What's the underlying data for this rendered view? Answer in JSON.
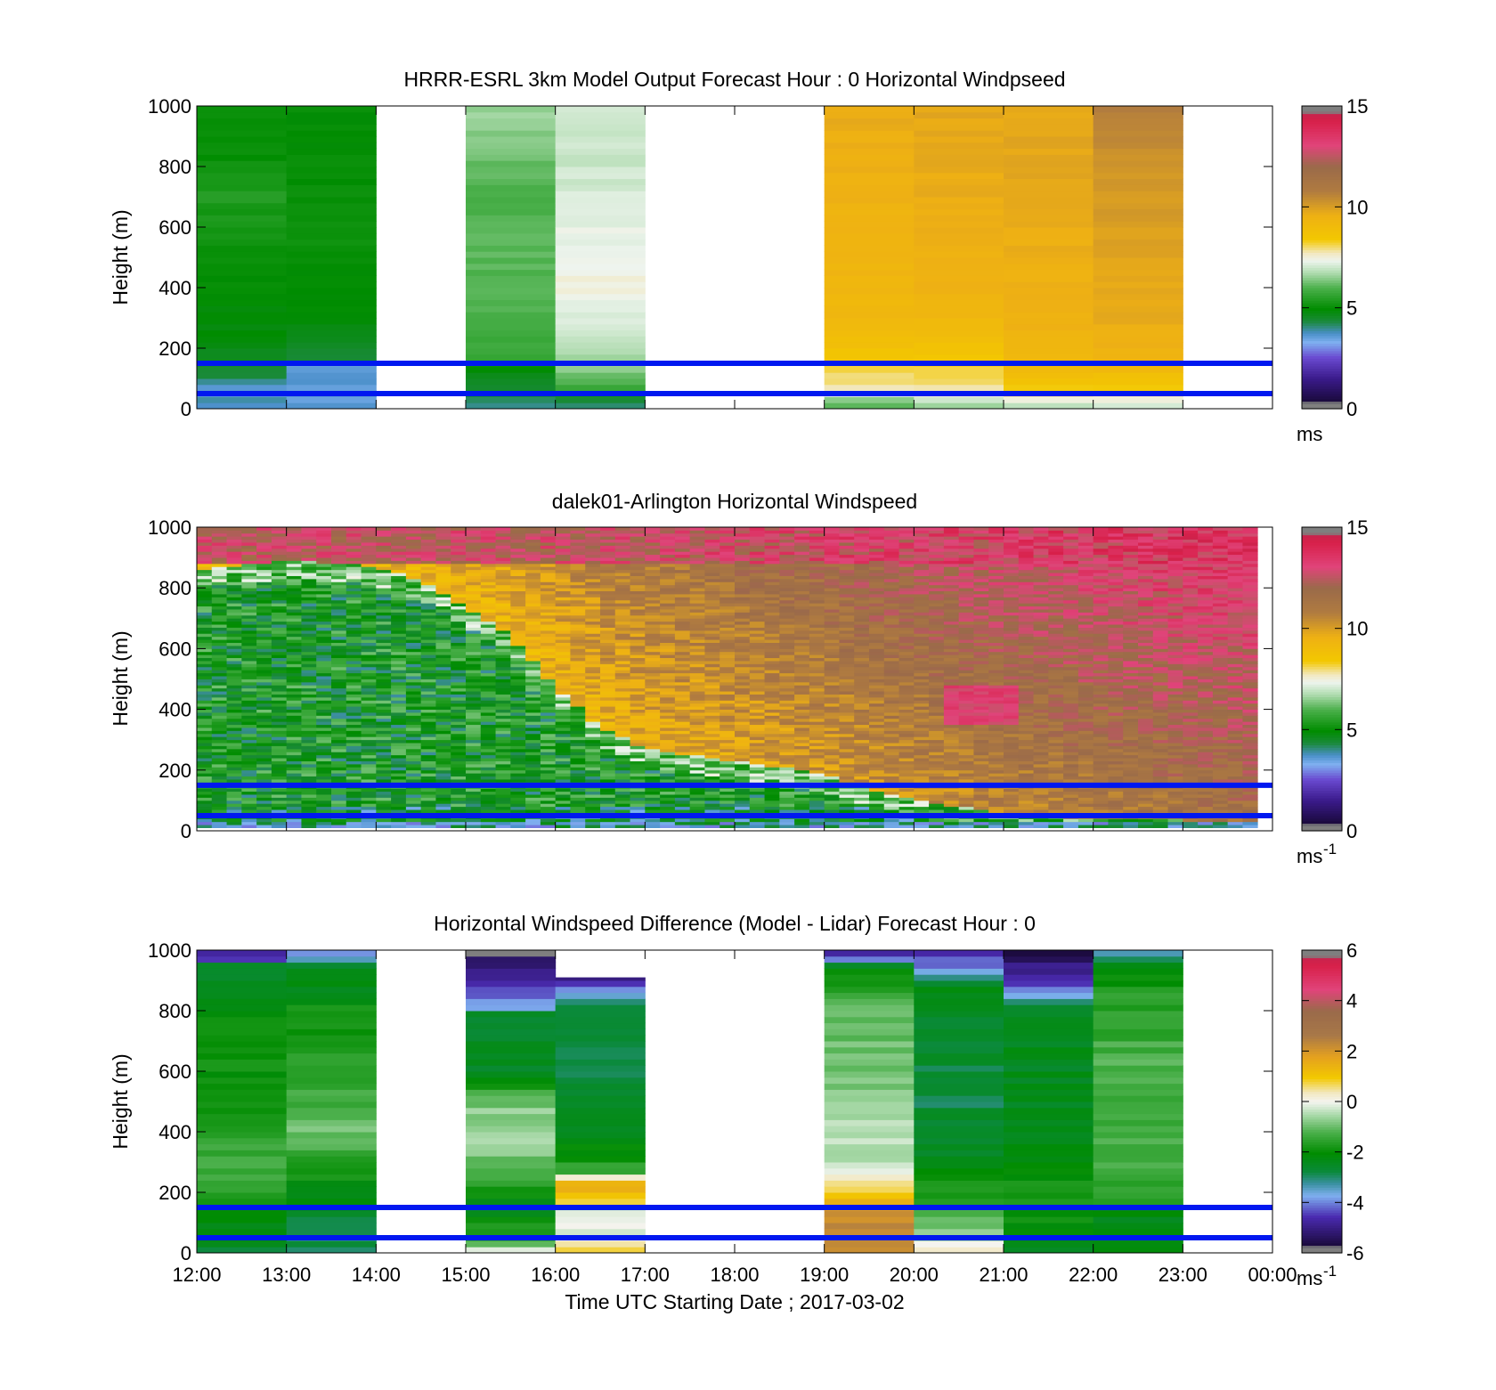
{
  "figure": {
    "xlabel": "Time UTC  Starting Date ; 2017-03-02",
    "time_ticks": [
      "12:00",
      "13:00",
      "14:00",
      "15:00",
      "16:00",
      "17:00",
      "18:00",
      "19:00",
      "20:00",
      "21:00",
      "22:00",
      "23:00",
      "00:00"
    ],
    "overlay_lines": {
      "color": "#0018f0",
      "heights_m": [
        150,
        50
      ]
    }
  },
  "chart_data": [
    {
      "type": "heatmap",
      "title": "HRRR-ESRL 3km Model Output   Forecast Hour : 0 Horizontal Windpseed",
      "ylabel": "Height (m)",
      "ylim": [
        0,
        1000
      ],
      "yticks": [
        0,
        200,
        400,
        600,
        800,
        1000
      ],
      "colorbar": {
        "min": 0,
        "max": 15,
        "ticks": [
          0,
          5,
          10,
          15
        ],
        "unit": "ms",
        "unit_sup": ""
      },
      "columns": [
        {
          "start": "12:00",
          "end": "13:00",
          "profile": [
            [
              0,
              3.8
            ],
            [
              30,
              3.8
            ],
            [
              60,
              3.4
            ],
            [
              100,
              4.3
            ],
            [
              160,
              4.6
            ],
            [
              220,
              4.8
            ],
            [
              400,
              5.0
            ],
            [
              600,
              5.2
            ],
            [
              700,
              5.4
            ],
            [
              800,
              5.1
            ],
            [
              1000,
              5.0
            ]
          ]
        },
        {
          "start": "13:00",
          "end": "14:00",
          "profile": [
            [
              0,
              3.6
            ],
            [
              40,
              3.6
            ],
            [
              150,
              3.6
            ],
            [
              160,
              4.4
            ],
            [
              250,
              4.8
            ],
            [
              400,
              5.0
            ],
            [
              600,
              5.1
            ],
            [
              800,
              5.0
            ],
            [
              1000,
              5.0
            ]
          ]
        },
        {
          "start": "15:00",
          "end": "16:00",
          "profile": [
            [
              0,
              3.8
            ],
            [
              40,
              4.3
            ],
            [
              150,
              5.0
            ],
            [
              170,
              5.6
            ],
            [
              300,
              6.0
            ],
            [
              500,
              6.1
            ],
            [
              700,
              6.0
            ],
            [
              900,
              6.4
            ],
            [
              1000,
              6.6
            ]
          ]
        },
        {
          "start": "16:00",
          "end": "17:00",
          "profile": [
            [
              0,
              3.8
            ],
            [
              30,
              4.5
            ],
            [
              60,
              5.5
            ],
            [
              100,
              6.2
            ],
            [
              150,
              6.6
            ],
            [
              250,
              7.0
            ],
            [
              400,
              7.5
            ],
            [
              600,
              7.3
            ],
            [
              800,
              7.0
            ],
            [
              1000,
              7.0
            ]
          ]
        },
        {
          "start": "19:00",
          "end": "20:00",
          "profile": [
            [
              0,
              6.0
            ],
            [
              30,
              6.5
            ],
            [
              60,
              7.5
            ],
            [
              80,
              7.8
            ],
            [
              100,
              8.0
            ],
            [
              150,
              8.3
            ],
            [
              200,
              8.8
            ],
            [
              300,
              9.2
            ],
            [
              500,
              9.4
            ],
            [
              700,
              9.5
            ],
            [
              1000,
              9.7
            ]
          ]
        },
        {
          "start": "20:00",
          "end": "21:00",
          "profile": [
            [
              0,
              6.2
            ],
            [
              40,
              7.4
            ],
            [
              80,
              7.9
            ],
            [
              150,
              8.4
            ],
            [
              200,
              8.7
            ],
            [
              250,
              9.1
            ],
            [
              400,
              9.5
            ],
            [
              600,
              9.6
            ],
            [
              800,
              9.7
            ],
            [
              1000,
              9.8
            ]
          ]
        },
        {
          "start": "21:00",
          "end": "22:00",
          "profile": [
            [
              0,
              6.8
            ],
            [
              40,
              7.6
            ],
            [
              80,
              8.6
            ],
            [
              150,
              9.3
            ],
            [
              300,
              9.5
            ],
            [
              500,
              9.6
            ],
            [
              800,
              9.8
            ],
            [
              1000,
              9.8
            ]
          ]
        },
        {
          "start": "22:00",
          "end": "23:00",
          "profile": [
            [
              0,
              6.9
            ],
            [
              40,
              7.6
            ],
            [
              80,
              8.6
            ],
            [
              150,
              9.4
            ],
            [
              300,
              9.7
            ],
            [
              600,
              10.0
            ],
            [
              850,
              10.3
            ],
            [
              1000,
              10.8
            ]
          ]
        }
      ]
    },
    {
      "type": "heatmap",
      "title": "dalek01-Arlington  Horizontal Windspeed",
      "ylabel": "Height (m)",
      "ylim": [
        0,
        1000
      ],
      "yticks": [
        0,
        200,
        400,
        600,
        800,
        1000
      ],
      "colorbar": {
        "min": 0,
        "max": 15,
        "ticks": [
          0,
          5,
          10,
          15
        ],
        "unit": "ms",
        "unit_sup": "-1"
      },
      "x_end": "23:50",
      "boundary_layer_top_m": [
        [
          12.0,
          860
        ],
        [
          13.0,
          890
        ],
        [
          14.0,
          870
        ],
        [
          14.5,
          820
        ],
        [
          15.0,
          740
        ],
        [
          15.5,
          640
        ],
        [
          16.0,
          470
        ],
        [
          16.5,
          340
        ],
        [
          17.0,
          270
        ],
        [
          18.0,
          230
        ],
        [
          19.0,
          190
        ],
        [
          19.5,
          140
        ],
        [
          20.0,
          110
        ],
        [
          20.5,
          80
        ],
        [
          21.0,
          55
        ],
        [
          22.0,
          40
        ],
        [
          23.0,
          35
        ],
        [
          23.83,
          30
        ]
      ],
      "column_minutes": 10
    },
    {
      "type": "heatmap",
      "title": "Horizontal Windspeed Difference (Model - Lidar) Forecast Hour : 0",
      "ylabel": "Height (m)",
      "ylim": [
        0,
        1000
      ],
      "yticks": [
        0,
        200,
        400,
        600,
        800,
        1000
      ],
      "colorbar": {
        "min": -6,
        "max": 6,
        "ticks": [
          -6,
          -4,
          -2,
          0,
          2,
          4,
          6
        ],
        "unit": "ms",
        "unit_sup": "-1"
      },
      "columns": [
        {
          "start": "12:00",
          "end": "13:00",
          "profile": [
            [
              0,
              -2.6
            ],
            [
              100,
              -2.2
            ],
            [
              200,
              -1.6
            ],
            [
              300,
              -1.4
            ],
            [
              500,
              -1.9
            ],
            [
              700,
              -2.0
            ],
            [
              790,
              -2.1
            ],
            [
              950,
              -2.6
            ],
            [
              960,
              -4.2
            ],
            [
              1000,
              -4.8
            ]
          ]
        },
        {
          "start": "13:00",
          "end": "14:00",
          "profile": [
            [
              0,
              -2.8
            ],
            [
              100,
              -3.0
            ],
            [
              160,
              -2.4
            ],
            [
              300,
              -1.6
            ],
            [
              400,
              -1.0
            ],
            [
              600,
              -1.6
            ],
            [
              800,
              -1.9
            ],
            [
              950,
              -2.6
            ],
            [
              960,
              -3.6
            ],
            [
              1000,
              -3.8
            ]
          ]
        },
        {
          "start": "15:00",
          "end": "16:00",
          "profile": [
            [
              0,
              0.6
            ],
            [
              30,
              -1.2
            ],
            [
              150,
              -2.4
            ],
            [
              300,
              -1.0
            ],
            [
              400,
              -0.5
            ],
            [
              500,
              -0.9
            ],
            [
              600,
              -2.4
            ],
            [
              800,
              -2.6
            ],
            [
              810,
              -3.8
            ],
            [
              900,
              -4.6
            ],
            [
              1000,
              -5.8
            ]
          ]
        },
        {
          "start": "16:00",
          "end": "17:00",
          "profile": [
            [
              0,
              1.0
            ],
            [
              40,
              0.0
            ],
            [
              150,
              -0.4
            ],
            [
              180,
              1.2
            ],
            [
              240,
              1.6
            ],
            [
              260,
              -1.5
            ],
            [
              400,
              -2.4
            ],
            [
              600,
              -2.8
            ],
            [
              700,
              -2.6
            ],
            [
              800,
              -2.6
            ],
            [
              850,
              -3.6
            ],
            [
              910,
              -5.0
            ]
          ]
        },
        {
          "start": "19:00",
          "end": "20:00",
          "profile": [
            [
              0,
              2.2
            ],
            [
              100,
              2.4
            ],
            [
              200,
              1.0
            ],
            [
              300,
              -0.4
            ],
            [
              400,
              -0.3
            ],
            [
              500,
              -0.8
            ],
            [
              650,
              -1.0
            ],
            [
              800,
              -0.9
            ],
            [
              900,
              -1.8
            ],
            [
              950,
              -2.4
            ],
            [
              970,
              -3.8
            ],
            [
              1000,
              -5.2
            ]
          ]
        },
        {
          "start": "20:00",
          "end": "21:00",
          "profile": [
            [
              0,
              0.4
            ],
            [
              60,
              -0.8
            ],
            [
              150,
              -1.4
            ],
            [
              300,
              -2.4
            ],
            [
              500,
              -2.8
            ],
            [
              700,
              -2.6
            ],
            [
              870,
              -2.4
            ],
            [
              1000,
              -5.0
            ]
          ]
        },
        {
          "start": "21:00",
          "end": "22:00",
          "profile": [
            [
              0,
              -2.4
            ],
            [
              150,
              -1.8
            ],
            [
              300,
              -2.1
            ],
            [
              500,
              -2.4
            ],
            [
              700,
              -2.4
            ],
            [
              800,
              -2.4
            ],
            [
              870,
              -4.2
            ],
            [
              1000,
              -5.6
            ]
          ]
        },
        {
          "start": "22:00",
          "end": "23:00",
          "profile": [
            [
              0,
              -2.4
            ],
            [
              150,
              -2.2
            ],
            [
              200,
              -1.4
            ],
            [
              400,
              -1.3
            ],
            [
              600,
              -1.2
            ],
            [
              850,
              -1.6
            ],
            [
              950,
              -2.4
            ],
            [
              980,
              -3.4
            ],
            [
              1000,
              -3.8
            ]
          ]
        }
      ]
    }
  ]
}
